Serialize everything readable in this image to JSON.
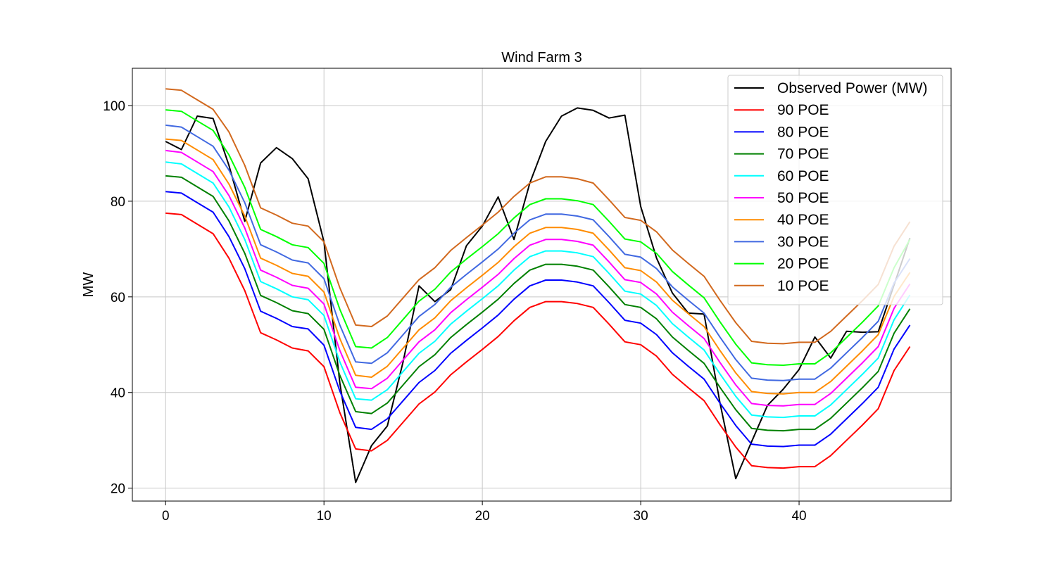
{
  "chart_data": {
    "type": "line",
    "title": "Wind Farm 3",
    "xlabel": "",
    "ylabel": "MW",
    "xlim": [
      -2.1,
      49.6
    ],
    "ylim": [
      17.3,
      107.8
    ],
    "xticks": [
      0,
      10,
      20,
      30,
      40
    ],
    "yticks": [
      20,
      40,
      60,
      80,
      100
    ],
    "grid": true,
    "legend_position": "top-right",
    "x": [
      0,
      1,
      2,
      3,
      4,
      5,
      6,
      7,
      8,
      9,
      10,
      11,
      12,
      13,
      14,
      15,
      16,
      17,
      18,
      19,
      20,
      21,
      22,
      23,
      24,
      25,
      26,
      27,
      28,
      29,
      30,
      31,
      32,
      33,
      34,
      35,
      36,
      37,
      38,
      39,
      40,
      41,
      42,
      43,
      44,
      45,
      46,
      47
    ],
    "series": [
      {
        "name": "Observed Power (MW)",
        "color": "#000000",
        "values": [
          92.5,
          90.8,
          97.8,
          97.3,
          87.5,
          75.8,
          88.0,
          91.2,
          88.9,
          84.7,
          71.5,
          42.0,
          21.2,
          28.9,
          33.0,
          46.5,
          62.3,
          59.0,
          61.5,
          70.7,
          74.8,
          80.9,
          72.0,
          83.8,
          92.5,
          97.8,
          99.5,
          99.0,
          97.4,
          98.0,
          78.9,
          68.1,
          60.8,
          56.6,
          56.4,
          37.9,
          22.0,
          29.7,
          37.3,
          40.7,
          44.8,
          51.6,
          47.2,
          52.8,
          52.6,
          52.7,
          62.5,
          72.3
        ]
      },
      {
        "name": "90 POE",
        "color": "#ff0000",
        "values": [
          77.5,
          77.2,
          75.2,
          73.2,
          68.1,
          61.3,
          52.5,
          51.0,
          49.3,
          48.7,
          45.4,
          35.8,
          28.2,
          27.8,
          30.0,
          33.8,
          37.6,
          40.1,
          43.7,
          46.4,
          49.0,
          51.7,
          55.0,
          57.8,
          59.0,
          59.0,
          58.6,
          57.8,
          54.3,
          50.6,
          50.0,
          47.6,
          43.8,
          41.0,
          38.3,
          33.3,
          28.6,
          24.7,
          24.3,
          24.2,
          24.5,
          24.5,
          26.8,
          30.0,
          33.2,
          36.6,
          44.6,
          49.6
        ]
      },
      {
        "name": "80 POE",
        "color": "#0000ff",
        "values": [
          82.0,
          81.7,
          79.7,
          77.7,
          72.6,
          65.9,
          57.0,
          55.5,
          53.8,
          53.3,
          49.9,
          40.3,
          32.7,
          32.3,
          34.5,
          38.3,
          42.1,
          44.6,
          48.2,
          50.9,
          53.5,
          56.2,
          59.5,
          62.3,
          63.5,
          63.5,
          63.1,
          62.3,
          58.8,
          55.1,
          54.5,
          52.1,
          48.3,
          45.5,
          42.8,
          37.8,
          33.1,
          29.2,
          28.8,
          28.7,
          29.0,
          29.0,
          31.3,
          34.5,
          37.7,
          41.1,
          49.1,
          54.1
        ]
      },
      {
        "name": "70 POE",
        "color": "#008000",
        "values": [
          85.3,
          85.0,
          83.0,
          81.0,
          75.9,
          69.1,
          60.3,
          58.8,
          57.1,
          56.5,
          53.2,
          43.6,
          36.0,
          35.6,
          37.8,
          41.6,
          45.4,
          47.9,
          51.5,
          54.2,
          56.8,
          59.5,
          62.8,
          65.6,
          66.8,
          66.8,
          66.4,
          65.6,
          62.1,
          58.4,
          57.8,
          55.4,
          51.6,
          48.8,
          46.1,
          41.1,
          36.4,
          32.5,
          32.1,
          32.0,
          32.3,
          32.3,
          34.6,
          37.8,
          41.0,
          44.4,
          52.4,
          57.5
        ]
      },
      {
        "name": "60 POE",
        "color": "#00ffff",
        "values": [
          88.2,
          87.8,
          85.8,
          83.8,
          78.8,
          72.0,
          63.2,
          61.7,
          60.0,
          59.4,
          56.1,
          46.4,
          38.7,
          38.4,
          40.6,
          44.4,
          48.2,
          50.7,
          54.3,
          57.0,
          59.6,
          62.3,
          65.6,
          68.4,
          69.6,
          69.6,
          69.2,
          68.4,
          64.9,
          61.2,
          60.6,
          58.2,
          54.4,
          51.6,
          48.9,
          43.9,
          39.2,
          35.3,
          34.9,
          34.8,
          35.1,
          35.1,
          37.4,
          40.6,
          43.8,
          47.2,
          55.2,
          60.4
        ]
      },
      {
        "name": "50 POE",
        "color": "#ff00ff",
        "values": [
          90.6,
          90.2,
          88.2,
          86.2,
          81.2,
          74.4,
          65.6,
          64.1,
          62.4,
          61.8,
          58.5,
          48.8,
          41.1,
          40.8,
          43.0,
          46.8,
          50.6,
          53.1,
          56.7,
          59.4,
          62.0,
          64.7,
          68.0,
          70.8,
          72.0,
          72.0,
          71.6,
          70.8,
          67.3,
          63.6,
          63.0,
          60.6,
          56.8,
          54.0,
          51.3,
          46.3,
          41.6,
          37.7,
          37.3,
          37.2,
          37.5,
          37.5,
          39.8,
          43.0,
          46.2,
          49.6,
          57.6,
          62.7
        ]
      },
      {
        "name": "40 POE",
        "color": "#ff8c00",
        "values": [
          93.0,
          92.7,
          90.7,
          88.7,
          83.6,
          76.9,
          68.1,
          66.6,
          64.9,
          64.3,
          61.0,
          51.3,
          43.6,
          43.2,
          45.5,
          49.3,
          53.1,
          55.6,
          59.2,
          61.9,
          64.5,
          67.2,
          70.5,
          73.3,
          74.5,
          74.5,
          74.1,
          73.3,
          69.8,
          66.1,
          65.5,
          63.1,
          59.3,
          56.5,
          53.8,
          48.8,
          44.1,
          40.2,
          39.8,
          39.7,
          40.0,
          40.0,
          42.3,
          45.5,
          48.7,
          52.1,
          60.1,
          65.1
        ]
      },
      {
        "name": "30 POE",
        "color": "#4169e1",
        "values": [
          95.9,
          95.5,
          93.5,
          91.5,
          86.5,
          79.7,
          70.9,
          69.4,
          67.7,
          67.1,
          63.8,
          54.1,
          46.4,
          46.1,
          48.3,
          52.1,
          55.9,
          58.4,
          62.0,
          64.7,
          67.3,
          70.0,
          73.3,
          76.1,
          77.3,
          77.3,
          76.9,
          76.1,
          72.6,
          68.9,
          68.3,
          65.9,
          62.1,
          59.3,
          56.6,
          51.6,
          46.9,
          43.0,
          42.6,
          42.5,
          42.8,
          42.8,
          45.1,
          48.3,
          51.5,
          54.9,
          62.9,
          68.0
        ]
      },
      {
        "name": "20 POE",
        "color": "#00ff00",
        "values": [
          99.1,
          98.8,
          96.8,
          94.8,
          89.7,
          82.9,
          74.1,
          72.6,
          70.9,
          70.3,
          67.0,
          57.4,
          49.6,
          49.3,
          51.5,
          55.3,
          59.1,
          61.6,
          65.2,
          67.9,
          70.5,
          73.2,
          76.5,
          79.3,
          80.5,
          80.5,
          80.1,
          79.3,
          75.8,
          72.1,
          71.5,
          69.1,
          65.3,
          62.5,
          59.8,
          54.8,
          50.1,
          46.2,
          45.8,
          45.7,
          46.0,
          46.0,
          48.3,
          51.5,
          54.7,
          58.1,
          66.1,
          72.0
        ]
      },
      {
        "name": "10 POE",
        "color": "#d2691e",
        "values": [
          103.5,
          103.2,
          101.2,
          99.2,
          94.5,
          87.5,
          78.6,
          77.1,
          75.4,
          74.8,
          71.5,
          61.9,
          54.1,
          53.8,
          56.0,
          59.8,
          63.6,
          66.1,
          69.7,
          72.4,
          75.0,
          77.7,
          81.0,
          83.8,
          85.1,
          85.1,
          84.7,
          83.8,
          80.3,
          76.6,
          76.0,
          73.6,
          69.8,
          67.0,
          64.3,
          59.3,
          54.6,
          50.7,
          50.3,
          50.2,
          50.5,
          50.5,
          52.8,
          56.0,
          59.2,
          62.6,
          70.6,
          75.7
        ]
      }
    ]
  }
}
